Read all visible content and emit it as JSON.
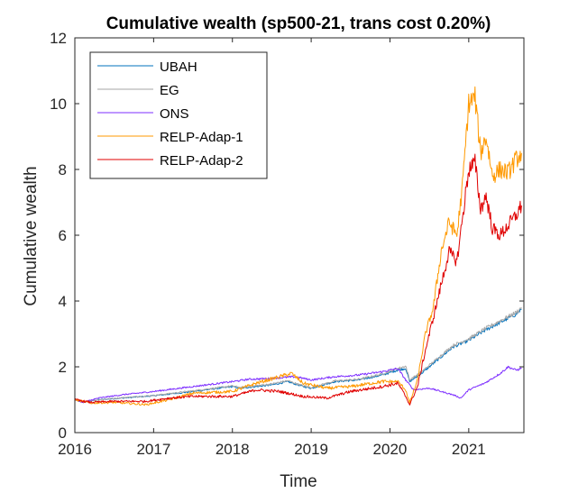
{
  "chart_data": {
    "type": "line",
    "title": "Cumulative wealth (sp500-21, trans cost 0.20%)",
    "xlabel": "Time",
    "ylabel": "Cumulative wealth",
    "xlim": [
      2016,
      2021.7
    ],
    "ylim": [
      0,
      12
    ],
    "xticks": [
      2016,
      2017,
      2018,
      2019,
      2020,
      2021
    ],
    "yticks": [
      0,
      2,
      4,
      6,
      8,
      10,
      12
    ],
    "grid": false,
    "legend_position": "top-left",
    "series": [
      {
        "name": "UBAH",
        "color": "#0072BD",
        "points": [
          [
            2016.0,
            1.0
          ],
          [
            2016.1,
            0.92
          ],
          [
            2016.3,
            1.0
          ],
          [
            2016.6,
            1.05
          ],
          [
            2017.0,
            1.12
          ],
          [
            2017.5,
            1.25
          ],
          [
            2018.0,
            1.4
          ],
          [
            2018.1,
            1.35
          ],
          [
            2018.5,
            1.45
          ],
          [
            2018.7,
            1.55
          ],
          [
            2018.9,
            1.4
          ],
          [
            2019.0,
            1.35
          ],
          [
            2019.3,
            1.55
          ],
          [
            2019.6,
            1.6
          ],
          [
            2019.9,
            1.75
          ],
          [
            2020.1,
            1.9
          ],
          [
            2020.2,
            1.95
          ],
          [
            2020.25,
            1.55
          ],
          [
            2020.4,
            1.8
          ],
          [
            2020.6,
            2.2
          ],
          [
            2020.8,
            2.6
          ],
          [
            2021.0,
            2.8
          ],
          [
            2021.2,
            3.1
          ],
          [
            2021.4,
            3.35
          ],
          [
            2021.6,
            3.6
          ],
          [
            2021.67,
            3.75
          ]
        ]
      },
      {
        "name": "EG",
        "color": "#A6A6A6",
        "points": [
          [
            2016.0,
            1.0
          ],
          [
            2016.1,
            0.93
          ],
          [
            2016.3,
            1.0
          ],
          [
            2016.6,
            1.06
          ],
          [
            2017.0,
            1.13
          ],
          [
            2017.5,
            1.27
          ],
          [
            2018.0,
            1.42
          ],
          [
            2018.1,
            1.37
          ],
          [
            2018.5,
            1.48
          ],
          [
            2018.7,
            1.58
          ],
          [
            2018.9,
            1.42
          ],
          [
            2019.0,
            1.37
          ],
          [
            2019.3,
            1.57
          ],
          [
            2019.6,
            1.62
          ],
          [
            2019.9,
            1.78
          ],
          [
            2020.1,
            1.95
          ],
          [
            2020.2,
            2.02
          ],
          [
            2020.25,
            1.6
          ],
          [
            2020.4,
            1.85
          ],
          [
            2020.6,
            2.25
          ],
          [
            2020.8,
            2.65
          ],
          [
            2021.0,
            2.85
          ],
          [
            2021.2,
            3.15
          ],
          [
            2021.4,
            3.4
          ],
          [
            2021.6,
            3.65
          ],
          [
            2021.67,
            3.8
          ]
        ]
      },
      {
        "name": "ONS",
        "color": "#7E2FFF",
        "points": [
          [
            2016.0,
            1.0
          ],
          [
            2016.1,
            0.92
          ],
          [
            2016.3,
            1.05
          ],
          [
            2016.6,
            1.15
          ],
          [
            2017.0,
            1.25
          ],
          [
            2017.5,
            1.4
          ],
          [
            2018.0,
            1.55
          ],
          [
            2018.2,
            1.62
          ],
          [
            2018.5,
            1.65
          ],
          [
            2018.8,
            1.7
          ],
          [
            2019.0,
            1.6
          ],
          [
            2019.3,
            1.7
          ],
          [
            2019.6,
            1.75
          ],
          [
            2019.9,
            1.85
          ],
          [
            2020.1,
            1.95
          ],
          [
            2020.2,
            1.6
          ],
          [
            2020.3,
            1.3
          ],
          [
            2020.5,
            1.35
          ],
          [
            2020.65,
            1.25
          ],
          [
            2020.8,
            1.15
          ],
          [
            2020.9,
            1.05
          ],
          [
            2021.0,
            1.3
          ],
          [
            2021.2,
            1.5
          ],
          [
            2021.4,
            1.8
          ],
          [
            2021.5,
            2.0
          ],
          [
            2021.6,
            1.9
          ],
          [
            2021.67,
            1.95
          ]
        ]
      },
      {
        "name": "RELP-Adap-1",
        "color": "#FF9900",
        "points": [
          [
            2016.0,
            1.0
          ],
          [
            2016.2,
            0.9
          ],
          [
            2016.5,
            0.92
          ],
          [
            2016.9,
            0.85
          ],
          [
            2017.2,
            1.0
          ],
          [
            2017.5,
            1.2
          ],
          [
            2018.0,
            1.25
          ],
          [
            2018.3,
            1.5
          ],
          [
            2018.6,
            1.7
          ],
          [
            2018.75,
            1.8
          ],
          [
            2018.9,
            1.5
          ],
          [
            2019.2,
            1.35
          ],
          [
            2019.5,
            1.4
          ],
          [
            2019.9,
            1.55
          ],
          [
            2020.1,
            1.55
          ],
          [
            2020.2,
            1.3
          ],
          [
            2020.25,
            0.9
          ],
          [
            2020.35,
            1.6
          ],
          [
            2020.45,
            3.0
          ],
          [
            2020.55,
            3.8
          ],
          [
            2020.65,
            5.5
          ],
          [
            2020.75,
            6.4
          ],
          [
            2020.85,
            6.0
          ],
          [
            2020.92,
            7.5
          ],
          [
            2021.0,
            10.0
          ],
          [
            2021.08,
            10.2
          ],
          [
            2021.15,
            8.5
          ],
          [
            2021.22,
            9.0
          ],
          [
            2021.3,
            7.8
          ],
          [
            2021.4,
            8.0
          ],
          [
            2021.5,
            7.9
          ],
          [
            2021.6,
            8.3
          ],
          [
            2021.67,
            8.5
          ]
        ]
      },
      {
        "name": "RELP-Adap-2",
        "color": "#E00000",
        "points": [
          [
            2016.0,
            1.0
          ],
          [
            2016.2,
            0.92
          ],
          [
            2016.5,
            0.95
          ],
          [
            2016.9,
            0.95
          ],
          [
            2017.2,
            1.05
          ],
          [
            2017.5,
            1.1
          ],
          [
            2018.0,
            1.1
          ],
          [
            2018.3,
            1.3
          ],
          [
            2018.6,
            1.25
          ],
          [
            2018.9,
            1.1
          ],
          [
            2019.2,
            1.05
          ],
          [
            2019.5,
            1.25
          ],
          [
            2019.9,
            1.4
          ],
          [
            2020.1,
            1.5
          ],
          [
            2020.2,
            1.1
          ],
          [
            2020.25,
            0.85
          ],
          [
            2020.35,
            1.4
          ],
          [
            2020.45,
            2.5
          ],
          [
            2020.55,
            3.5
          ],
          [
            2020.65,
            4.5
          ],
          [
            2020.75,
            5.5
          ],
          [
            2020.85,
            5.2
          ],
          [
            2020.92,
            6.5
          ],
          [
            2021.0,
            8.0
          ],
          [
            2021.08,
            8.2
          ],
          [
            2021.15,
            6.8
          ],
          [
            2021.22,
            7.2
          ],
          [
            2021.3,
            6.2
          ],
          [
            2021.4,
            6.0
          ],
          [
            2021.5,
            6.3
          ],
          [
            2021.6,
            6.6
          ],
          [
            2021.67,
            6.9
          ]
        ]
      }
    ]
  }
}
